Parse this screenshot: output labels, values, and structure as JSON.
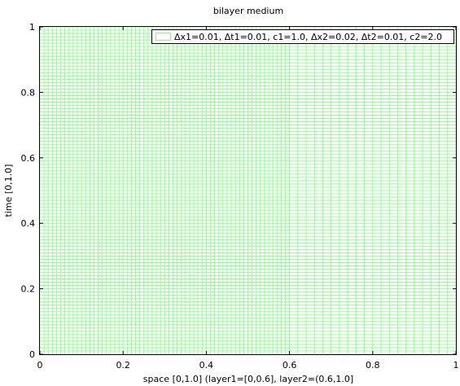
{
  "chart_data": {
    "type": "mesh",
    "title": "bilayer medium",
    "xlabel": "space [0,1.0] (layer1=[0,0.6], layer2=(0.6,1.0]",
    "ylabel": "time [0,1.0]",
    "xlim": [
      0,
      1
    ],
    "ylim": [
      0,
      1
    ],
    "xticks": [
      "0",
      "0.2",
      "0.4",
      "0.6",
      "0.8",
      "1"
    ],
    "yticks": [
      "0",
      "0.2",
      "0.4",
      "0.6",
      "0.8",
      "1"
    ],
    "grid_color": "#80ff80",
    "legend": {
      "position": "top-right",
      "label": "Δx1=0.01, Δt1=0.01, c1=1.0, Δx2=0.02, Δt2=0.01, c2=2.0"
    },
    "layers": [
      {
        "x_start": 0.0,
        "x_end": 0.6,
        "dx": 0.01,
        "dt": 0.01,
        "c": 1.0
      },
      {
        "x_start": 0.6,
        "x_end": 1.0,
        "dx": 0.02,
        "dt": 0.01,
        "c": 2.0
      }
    ]
  }
}
